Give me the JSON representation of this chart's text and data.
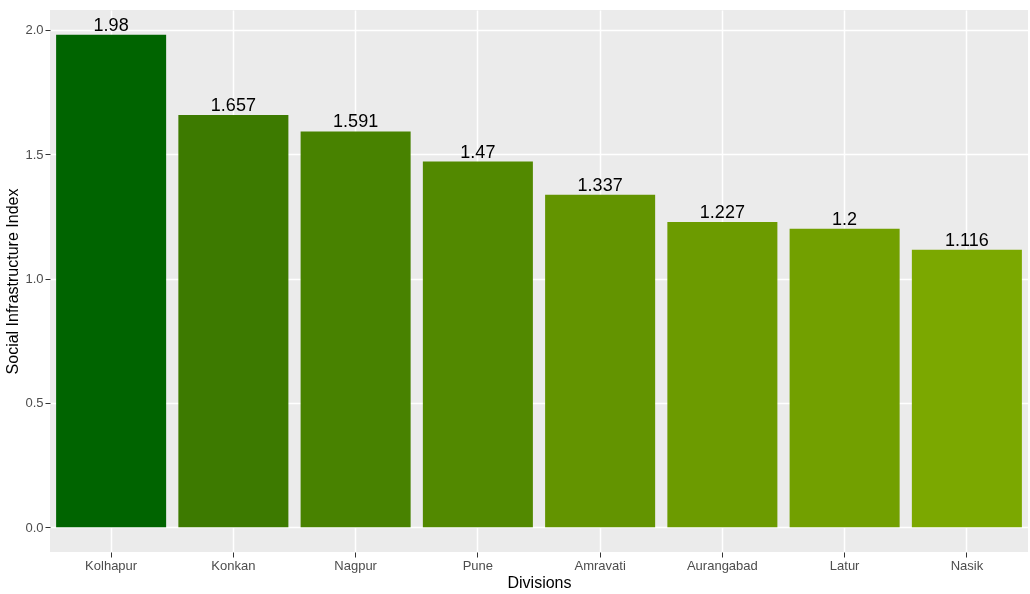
{
  "chart_data": {
    "type": "bar",
    "xlabel": "Divisions",
    "ylabel": "Social Infrastructure Index",
    "categories": [
      "Kolhapur",
      "Konkan",
      "Nagpur",
      "Pune",
      "Amravati",
      "Aurangabad",
      "Latur",
      "Nasik"
    ],
    "values": [
      1.98,
      1.657,
      1.591,
      1.47,
      1.337,
      1.227,
      1.2,
      1.116
    ],
    "colors": [
      "#006400",
      "#3d7a00",
      "#488200",
      "#528900",
      "#639400",
      "#6c9b00",
      "#72a000",
      "#7ba800"
    ],
    "ylim": [
      -0.099,
      2.079
    ],
    "yticks": [
      {
        "value": 0,
        "label": "0.0"
      },
      {
        "value": 0.5,
        "label": "0.5"
      },
      {
        "value": 1,
        "label": "1.0"
      },
      {
        "value": 1.5,
        "label": "1.5"
      },
      {
        "value": 2,
        "label": "2.0"
      }
    ],
    "grid": true,
    "data_labels": true
  }
}
